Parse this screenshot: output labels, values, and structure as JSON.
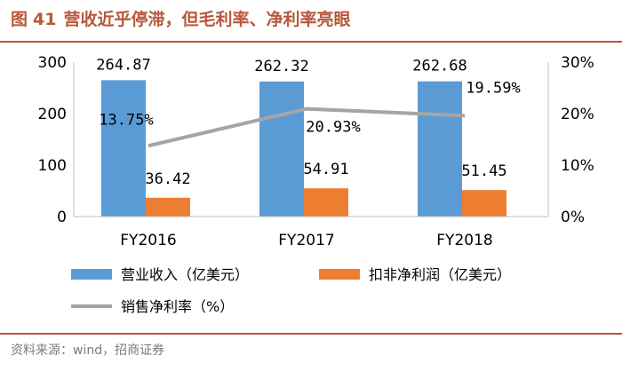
{
  "header": {
    "fig_prefix": "图",
    "fig_number": "41",
    "title": "营收近乎停滞，但毛利率、净利率亮眼"
  },
  "footer": {
    "source": "资料来源：wind，招商证券"
  },
  "chart_data": {
    "type": "bar",
    "categories": [
      "FY2016",
      "FY2017",
      "FY2018"
    ],
    "series": [
      {
        "name": "营业收入（亿美元）",
        "type": "bar",
        "axis": "left",
        "color": "#5b9bd5",
        "values": [
          264.87,
          262.32,
          262.68
        ],
        "labels": [
          "264.87",
          "262.32",
          "262.68"
        ]
      },
      {
        "name": "扣非净利润（亿美元）",
        "type": "bar",
        "axis": "left",
        "color": "#ed7d31",
        "values": [
          36.42,
          54.91,
          51.45
        ],
        "labels": [
          "36.42",
          "54.91",
          "51.45"
        ]
      },
      {
        "name": "销售净利率（%）",
        "type": "line",
        "axis": "right",
        "color": "#a5a5a5",
        "values": [
          13.75,
          20.93,
          19.59
        ],
        "labels": [
          "13.75%",
          "20.93%",
          "19.59%"
        ]
      }
    ],
    "y_left": {
      "ylim": [
        0,
        300
      ],
      "ticks": [
        "0",
        "100",
        "200",
        "300"
      ]
    },
    "y_right": {
      "ylim": [
        0,
        30
      ],
      "ticks": [
        "0%",
        "10%",
        "20%",
        "30%"
      ]
    },
    "grid": false,
    "legend": "bottom"
  }
}
